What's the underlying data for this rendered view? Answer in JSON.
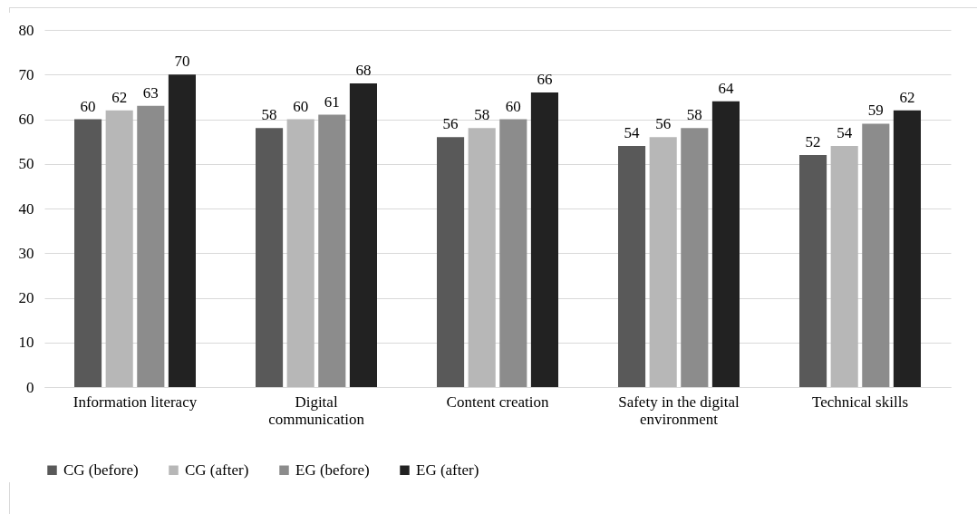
{
  "chart_data": {
    "type": "bar",
    "categories": [
      "Information literacy",
      "Digital communication",
      "Content creation",
      "Safety in the digital environment",
      "Technical skills"
    ],
    "series": [
      {
        "name": "CG (before)",
        "color": "#595959",
        "values": [
          60,
          58,
          56,
          54,
          52
        ]
      },
      {
        "name": "CG (after)",
        "color": "#b7b7b7",
        "values": [
          62,
          60,
          58,
          56,
          54
        ]
      },
      {
        "name": "EG (before)",
        "color": "#8c8c8c",
        "values": [
          63,
          61,
          60,
          58,
          59
        ]
      },
      {
        "name": "EG (after)",
        "color": "#222222",
        "values": [
          70,
          68,
          66,
          64,
          62
        ]
      }
    ],
    "ylim": [
      0,
      80
    ],
    "yticks": [
      0,
      10,
      20,
      30,
      40,
      50,
      60,
      70,
      80
    ],
    "grid": "y",
    "legend": "bottom",
    "data_labels": true
  }
}
